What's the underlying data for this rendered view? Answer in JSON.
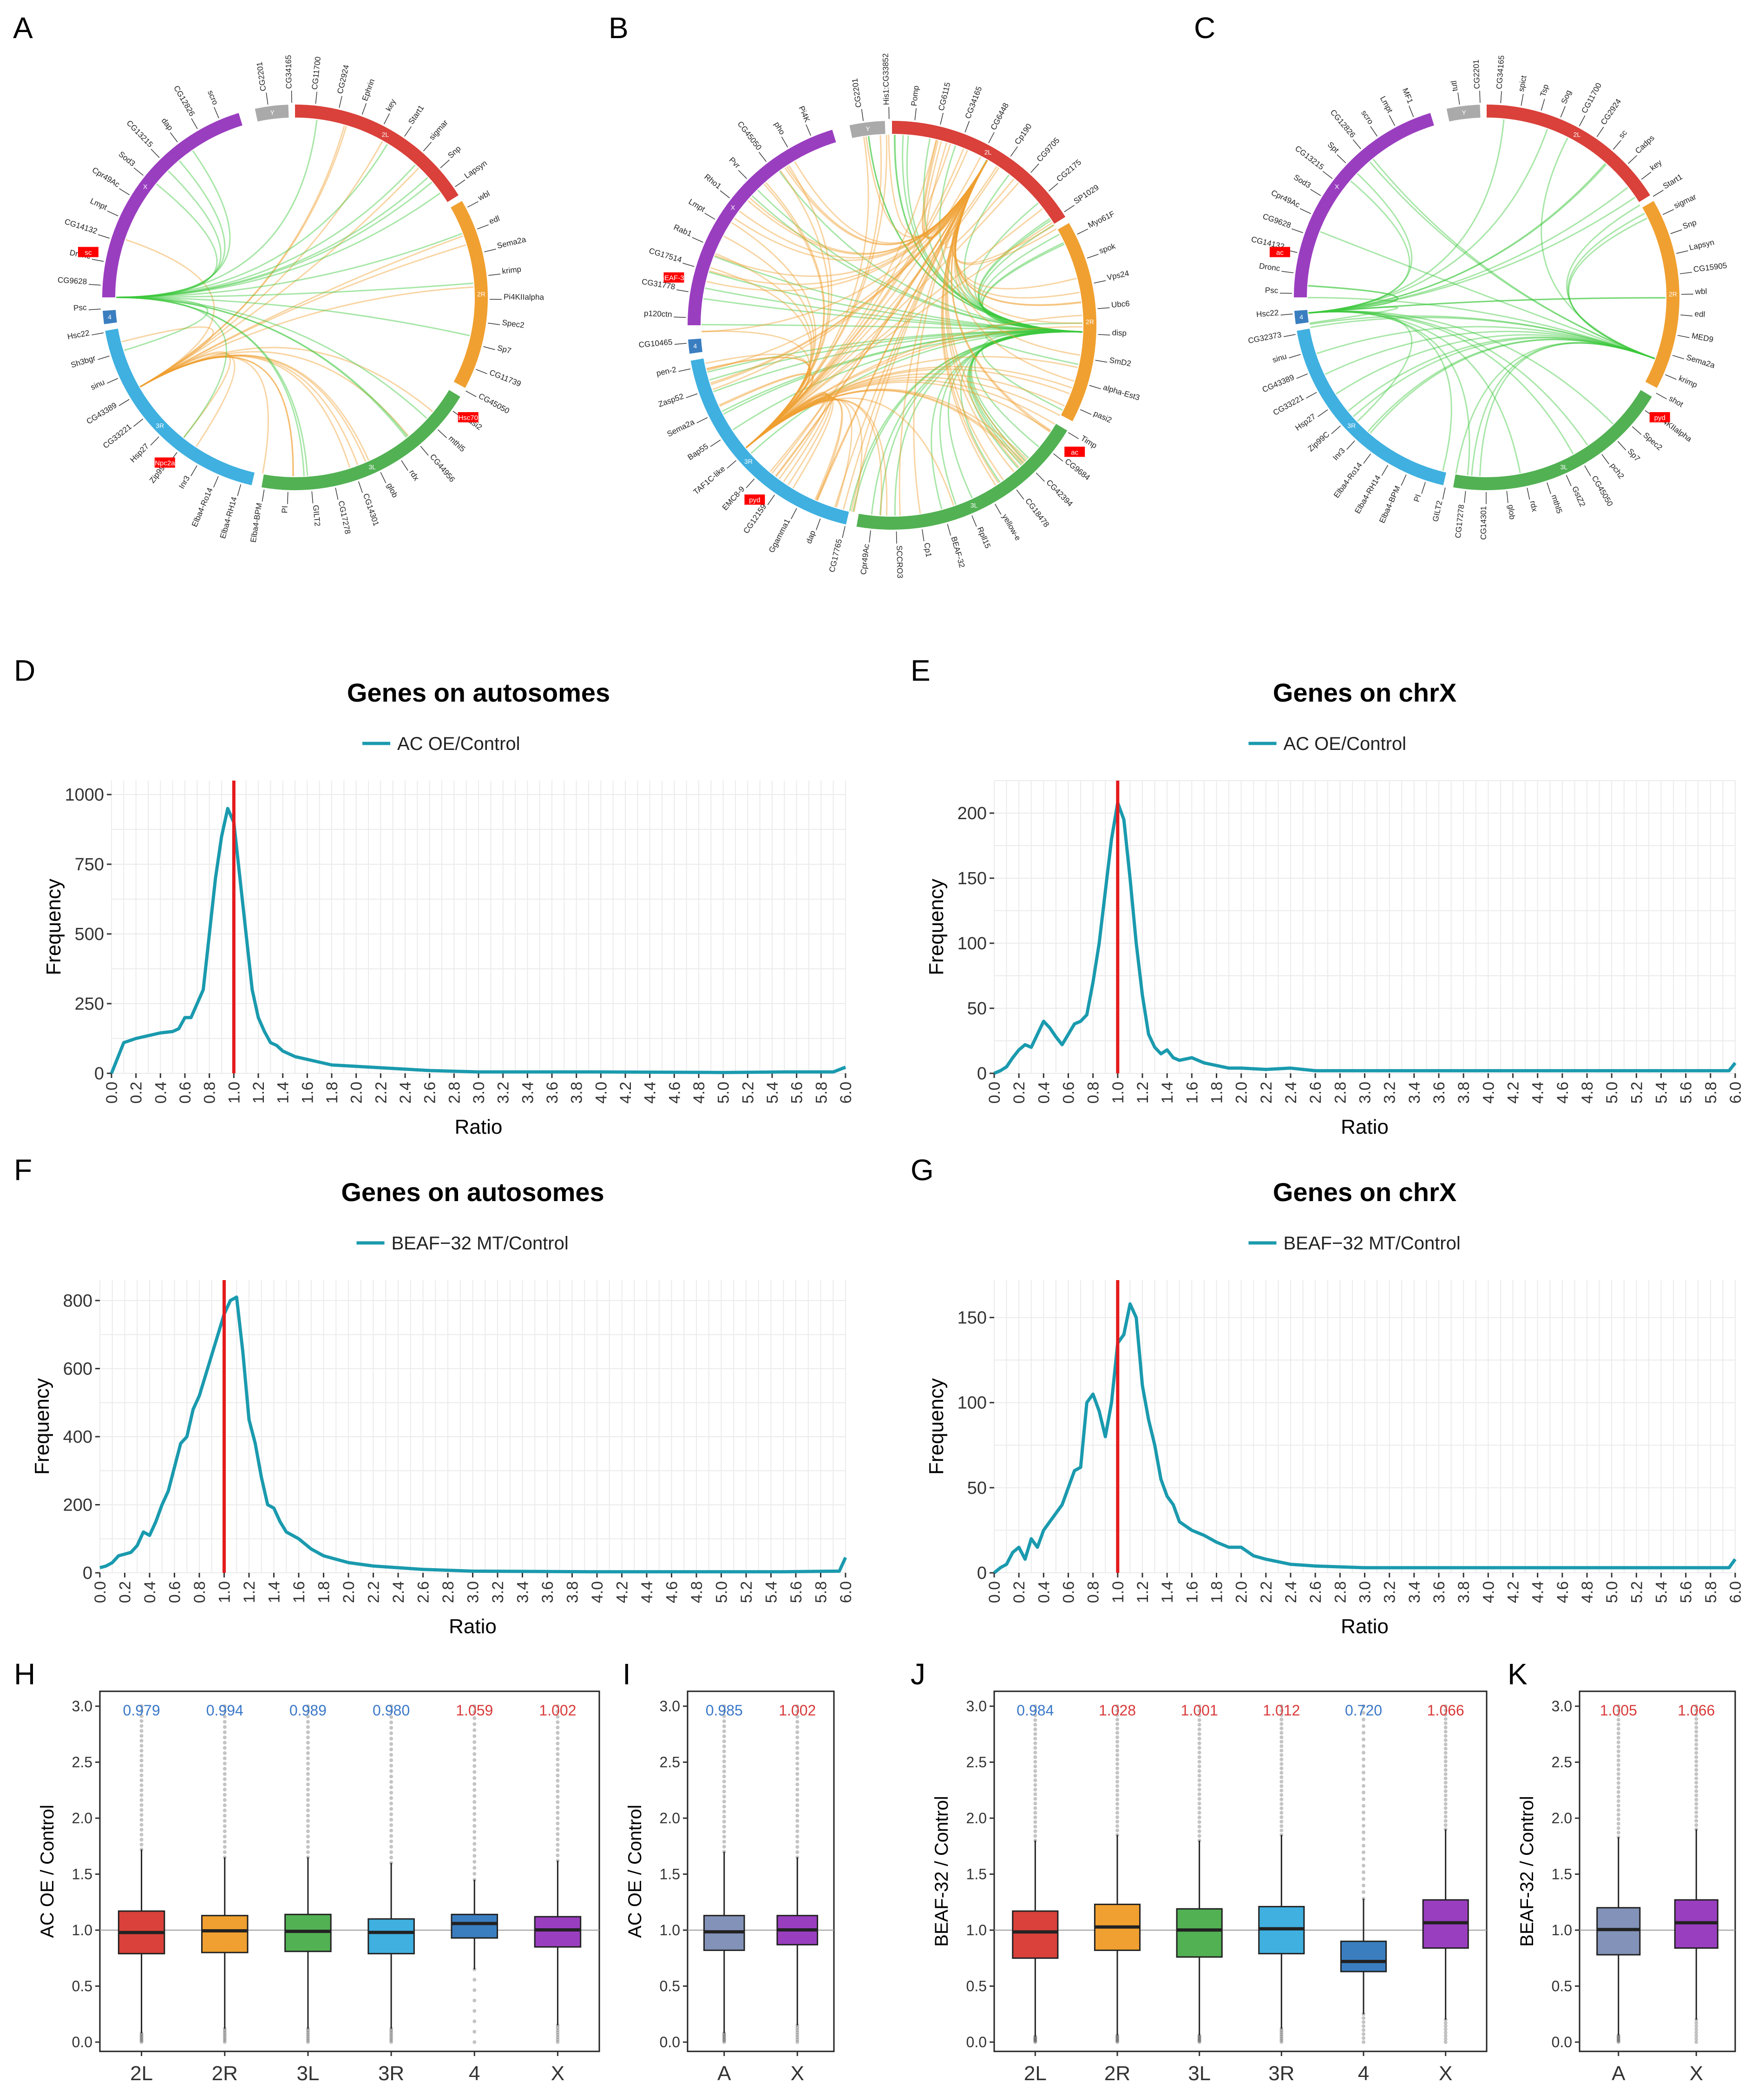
{
  "panel_letters": {
    "A": "A",
    "B": "B",
    "C": "C",
    "D": "D",
    "E": "E",
    "F": "F",
    "G": "G",
    "H": "H",
    "I": "I",
    "J": "J",
    "K": "K"
  },
  "colors": {
    "line": "#1a9aae",
    "ref_line": "#e41a1c",
    "grid": "#ebebeb",
    "chr_2L": "#d9413a",
    "chr_2R": "#f0a030",
    "chr_3L": "#52b153",
    "chr_3R": "#3fb0e0",
    "chr_4": "#3a7ec0",
    "chr_X": "#9a3ec0",
    "chr_Y": "#aaaaaa",
    "autosome_box": "#8292b8",
    "up_label": "#d93a3a",
    "down_label": "#3a78c8",
    "link_orange": "#f0a030",
    "link_green": "#3cc83c"
  },
  "circos": [
    {
      "panel": "A",
      "chromosomes": [
        "X",
        "Y",
        "2L",
        "2R",
        "3L",
        "3R",
        "4"
      ],
      "gene_labels": [
        "CG2201",
        "CG34165",
        "CG11700",
        "CG2924",
        "Ephrin",
        "key",
        "Start1",
        "sigmar",
        "Snp",
        "Lapsyn",
        "wbl",
        "edl",
        "Sema2a",
        "krimp",
        "Pi4KIIalpha",
        "Spec2",
        "Sp7",
        "CG11739",
        "CG45050",
        "pasi2",
        "mthl5",
        "CG44956",
        "rdx",
        "glob",
        "CG14301",
        "CG17278",
        "GILT2",
        "PI",
        "Elba4-BPM",
        "Elba4-RH14",
        "Elba4-Ro14",
        "Inr3",
        "Zip99C",
        "Hsp27",
        "CG33221",
        "CG43389",
        "sinu",
        "Sh3bgr",
        "Hsc22",
        "Psc",
        "CG9628",
        "Dronc",
        "CG14132",
        "Lmpt",
        "Cpr49Ac",
        "Sod3",
        "CG13215",
        "dap",
        "CG12826",
        "scro"
      ],
      "highlight_labels": [
        "sc",
        "Hsc70",
        "Npc2a"
      ]
    },
    {
      "panel": "B",
      "chromosomes": [
        "X",
        "Y",
        "2L",
        "2R",
        "3L",
        "3R",
        "4"
      ],
      "gene_labels": [
        "CG2201",
        "His1:CG33852",
        "Pomp",
        "CG6115",
        "CG34165",
        "CG6448",
        "Cp190",
        "CG9705",
        "CG2175",
        "SP1029",
        "Myo61F",
        "spok",
        "Vps24",
        "Ubc6",
        "disp",
        "SmD2",
        "alpha-Est3",
        "pasi2",
        "Timp",
        "CG9684",
        "CG42394",
        "CG18478",
        "yellow-e",
        "Rpll15",
        "BEAF-32",
        "Cp1",
        "SCCRO3",
        "Cpr49Ac",
        "CG17765",
        "dap",
        "Ggamma1",
        "CG12159",
        "EMC8-9",
        "TAF1C-like",
        "Bap55",
        "Sema2a",
        "Zasp52",
        "pen-2",
        "CG10465",
        "p120ctn",
        "CG31778",
        "CG17514",
        "Rab1",
        "Lmpt",
        "Rho1",
        "Pvr",
        "CG45050",
        "pho",
        "Pi4K"
      ],
      "highlight_labels": [
        "BEAF-32",
        "ac",
        "pyd"
      ]
    },
    {
      "panel": "C",
      "chromosomes": [
        "X",
        "Y",
        "2L",
        "2R",
        "3L",
        "3R",
        "4"
      ],
      "gene_labels": [
        "tutl",
        "CG2201",
        "CG34165",
        "spict",
        "Tsp",
        "Sog",
        "CG11700",
        "CG2924",
        "sc",
        "Cadps",
        "key",
        "Start1",
        "sigmar",
        "Snp",
        "Lapsyn",
        "CG15905",
        "wbl",
        "edl",
        "MED9",
        "Sema2a",
        "krimp",
        "shot",
        "Pi4KIIalpha",
        "Spec2",
        "Sp7",
        "pch2",
        "CG45050",
        "GstZ2",
        "mthl5",
        "rdx",
        "glob",
        "CG14301",
        "CG17278",
        "GILT2",
        "PI",
        "Elba4-BPM",
        "Elba4-RH14",
        "Elba4-Ro14",
        "Inr3",
        "Zip99C",
        "Hsp27",
        "CG33221",
        "CG43389",
        "sinu",
        "CG32373",
        "Hsc22",
        "Psc",
        "Dronc",
        "CG14132",
        "CG9628",
        "Cpr49Ac",
        "Sod3",
        "CG13215",
        "Spt",
        "CG12826",
        "scro",
        "Lmpt",
        "MF1"
      ],
      "highlight_labels": [
        "ac",
        "pyd"
      ]
    }
  ],
  "chart_data": [
    {
      "panel": "D",
      "type": "line",
      "title": "Genes on autosomes",
      "legend": "AC OE/Control",
      "xlabel": "Ratio",
      "ylabel": "Frequency",
      "xlim": [
        0,
        6
      ],
      "ylim": [
        0,
        1050
      ],
      "yticks": [
        0,
        250,
        500,
        750,
        1000
      ],
      "ref_x": 1.0,
      "x": [
        0,
        0.1,
        0.2,
        0.3,
        0.4,
        0.5,
        0.55,
        0.6,
        0.65,
        0.7,
        0.75,
        0.8,
        0.85,
        0.9,
        0.95,
        1.0,
        1.05,
        1.1,
        1.15,
        1.2,
        1.25,
        1.3,
        1.35,
        1.4,
        1.5,
        1.6,
        1.7,
        1.8,
        2.0,
        2.2,
        2.4,
        2.6,
        3.0,
        3.5,
        4.0,
        4.5,
        5.0,
        5.5,
        5.9,
        6.0
      ],
      "y": [
        0,
        110,
        125,
        135,
        145,
        150,
        160,
        200,
        200,
        250,
        300,
        500,
        700,
        850,
        950,
        900,
        700,
        500,
        300,
        200,
        150,
        110,
        100,
        80,
        60,
        50,
        40,
        30,
        25,
        20,
        15,
        10,
        5,
        5,
        5,
        4,
        3,
        5,
        5,
        22
      ]
    },
    {
      "panel": "E",
      "type": "line",
      "title": "Genes on chrX",
      "legend": "AC OE/Control",
      "xlabel": "Ratio",
      "ylabel": "Frequency",
      "xlim": [
        0,
        6
      ],
      "ylim": [
        0,
        225
      ],
      "yticks": [
        0,
        50,
        100,
        150,
        200
      ],
      "ref_x": 1.0,
      "x": [
        0,
        0.05,
        0.1,
        0.15,
        0.2,
        0.25,
        0.3,
        0.35,
        0.4,
        0.45,
        0.5,
        0.55,
        0.6,
        0.65,
        0.7,
        0.75,
        0.8,
        0.85,
        0.9,
        0.95,
        1.0,
        1.05,
        1.1,
        1.15,
        1.2,
        1.25,
        1.3,
        1.35,
        1.4,
        1.45,
        1.5,
        1.6,
        1.7,
        1.8,
        1.9,
        2.0,
        2.2,
        2.4,
        2.6,
        3.0,
        4.0,
        5.0,
        5.5,
        5.95,
        6.0
      ],
      "y": [
        0,
        2,
        5,
        12,
        18,
        22,
        20,
        30,
        40,
        35,
        28,
        22,
        30,
        38,
        40,
        45,
        70,
        100,
        140,
        180,
        208,
        195,
        150,
        100,
        60,
        30,
        20,
        15,
        18,
        12,
        10,
        12,
        8,
        6,
        4,
        4,
        3,
        4,
        2,
        2,
        2,
        2,
        2,
        2,
        8
      ]
    },
    {
      "panel": "F",
      "type": "line",
      "title": "Genes on autosomes",
      "legend": "BEAF−32 MT/Control",
      "xlabel": "Ratio",
      "ylabel": "Frequency",
      "xlim": [
        0,
        6
      ],
      "ylim": [
        0,
        860
      ],
      "yticks": [
        0,
        200,
        400,
        600,
        800
      ],
      "ref_x": 1.0,
      "x": [
        0,
        0.05,
        0.1,
        0.15,
        0.2,
        0.25,
        0.3,
        0.35,
        0.4,
        0.45,
        0.5,
        0.55,
        0.6,
        0.65,
        0.7,
        0.75,
        0.8,
        0.85,
        0.9,
        0.95,
        1.0,
        1.05,
        1.1,
        1.15,
        1.2,
        1.25,
        1.3,
        1.35,
        1.4,
        1.45,
        1.5,
        1.6,
        1.7,
        1.8,
        1.9,
        2.0,
        2.2,
        2.4,
        2.6,
        3.0,
        4.0,
        5.0,
        5.5,
        5.95,
        6.0
      ],
      "y": [
        15,
        20,
        30,
        50,
        55,
        60,
        80,
        120,
        110,
        150,
        200,
        240,
        310,
        380,
        400,
        480,
        520,
        580,
        640,
        700,
        760,
        800,
        810,
        650,
        450,
        380,
        280,
        200,
        190,
        150,
        120,
        100,
        70,
        50,
        40,
        30,
        20,
        15,
        10,
        5,
        3,
        3,
        3,
        5,
        45
      ]
    },
    {
      "panel": "G",
      "type": "line",
      "title": "Genes on chrX",
      "legend": "BEAF−32 MT/Control",
      "xlabel": "Ratio",
      "ylabel": "Frequency",
      "xlim": [
        0,
        6
      ],
      "ylim": [
        0,
        172
      ],
      "yticks": [
        0,
        50,
        100,
        150
      ],
      "ref_x": 1.0,
      "x": [
        0,
        0.05,
        0.1,
        0.15,
        0.2,
        0.25,
        0.3,
        0.35,
        0.4,
        0.45,
        0.5,
        0.55,
        0.6,
        0.65,
        0.7,
        0.75,
        0.8,
        0.85,
        0.9,
        0.95,
        1.0,
        1.05,
        1.1,
        1.15,
        1.2,
        1.25,
        1.3,
        1.35,
        1.4,
        1.45,
        1.5,
        1.6,
        1.7,
        1.8,
        1.9,
        2.0,
        2.1,
        2.2,
        2.4,
        2.6,
        3.0,
        4.0,
        5.0,
        5.5,
        5.95,
        6.0
      ],
      "y": [
        0,
        3,
        5,
        12,
        15,
        8,
        20,
        15,
        25,
        30,
        35,
        40,
        50,
        60,
        62,
        100,
        105,
        95,
        80,
        100,
        135,
        140,
        158,
        150,
        110,
        90,
        75,
        55,
        45,
        40,
        30,
        25,
        22,
        18,
        15,
        15,
        10,
        8,
        5,
        4,
        3,
        3,
        3,
        3,
        3,
        8
      ]
    },
    {
      "panel": "H",
      "type": "box",
      "ylabel": "AC OE / Control",
      "ylim": [
        0,
        3.05
      ],
      "yticks": [
        0.0,
        0.5,
        1.0,
        1.5,
        2.0,
        2.5,
        3.0
      ],
      "categories": [
        "2L",
        "2R",
        "3L",
        "3R",
        "4",
        "X"
      ],
      "medians_label": [
        "0.979",
        "0.994",
        "0.989",
        "0.980",
        "1.059",
        "1.002"
      ],
      "label_dir": [
        "down",
        "down",
        "down",
        "down",
        "up",
        "up"
      ],
      "boxes": [
        {
          "q1": 0.79,
          "median": 0.979,
          "q3": 1.17,
          "lo": 0.08,
          "hi": 1.72
        },
        {
          "q1": 0.8,
          "median": 0.994,
          "q3": 1.13,
          "lo": 0.12,
          "hi": 1.65
        },
        {
          "q1": 0.81,
          "median": 0.989,
          "q3": 1.14,
          "lo": 0.12,
          "hi": 1.65
        },
        {
          "q1": 0.79,
          "median": 0.98,
          "q3": 1.1,
          "lo": 0.12,
          "hi": 1.6
        },
        {
          "q1": 0.93,
          "median": 1.059,
          "q3": 1.14,
          "lo": 0.65,
          "hi": 1.45
        },
        {
          "q1": 0.85,
          "median": 1.002,
          "q3": 1.12,
          "lo": 0.15,
          "hi": 1.62
        }
      ]
    },
    {
      "panel": "I",
      "type": "box",
      "ylabel": "AC OE / Control",
      "ylim": [
        0,
        3.05
      ],
      "yticks": [
        0.0,
        0.5,
        1.0,
        1.5,
        2.0,
        2.5,
        3.0
      ],
      "categories": [
        "A",
        "X"
      ],
      "medians_label": [
        "0.985",
        "1.002"
      ],
      "label_dir": [
        "down",
        "up"
      ],
      "boxes": [
        {
          "q1": 0.82,
          "median": 0.985,
          "q3": 1.13,
          "lo": 0.08,
          "hi": 1.7
        },
        {
          "q1": 0.87,
          "median": 1.002,
          "q3": 1.13,
          "lo": 0.15,
          "hi": 1.65
        }
      ]
    },
    {
      "panel": "J",
      "type": "box",
      "ylabel": "BEAF-32 / Control",
      "ylim": [
        0,
        3.05
      ],
      "yticks": [
        0.0,
        0.5,
        1.0,
        1.5,
        2.0,
        2.5,
        3.0
      ],
      "categories": [
        "2L",
        "2R",
        "3L",
        "3R",
        "4",
        "X"
      ],
      "medians_label": [
        "0.984",
        "1.028",
        "1.001",
        "1.012",
        "0.720",
        "1.066"
      ],
      "label_dir": [
        "down",
        "up",
        "up",
        "up",
        "down",
        "up"
      ],
      "boxes": [
        {
          "q1": 0.75,
          "median": 0.984,
          "q3": 1.17,
          "lo": 0.05,
          "hi": 1.8
        },
        {
          "q1": 0.82,
          "median": 1.028,
          "q3": 1.23,
          "lo": 0.06,
          "hi": 1.85
        },
        {
          "q1": 0.76,
          "median": 1.001,
          "q3": 1.19,
          "lo": 0.06,
          "hi": 1.8
        },
        {
          "q1": 0.79,
          "median": 1.012,
          "q3": 1.21,
          "lo": 0.12,
          "hi": 1.85
        },
        {
          "q1": 0.63,
          "median": 0.72,
          "q3": 0.9,
          "lo": 0.25,
          "hi": 1.28
        },
        {
          "q1": 0.84,
          "median": 1.066,
          "q3": 1.27,
          "lo": 0.2,
          "hi": 1.9
        }
      ]
    },
    {
      "panel": "K",
      "type": "box",
      "ylabel": "BEAF-32 / Control",
      "ylim": [
        0,
        3.05
      ],
      "yticks": [
        0.0,
        0.5,
        1.0,
        1.5,
        2.0,
        2.5,
        3.0
      ],
      "categories": [
        "A",
        "X"
      ],
      "medians_label": [
        "1.005",
        "1.066"
      ],
      "label_dir": [
        "up",
        "up"
      ],
      "boxes": [
        {
          "q1": 0.78,
          "median": 1.005,
          "q3": 1.2,
          "lo": 0.06,
          "hi": 1.83
        },
        {
          "q1": 0.84,
          "median": 1.066,
          "q3": 1.27,
          "lo": 0.2,
          "hi": 1.9
        }
      ]
    }
  ]
}
